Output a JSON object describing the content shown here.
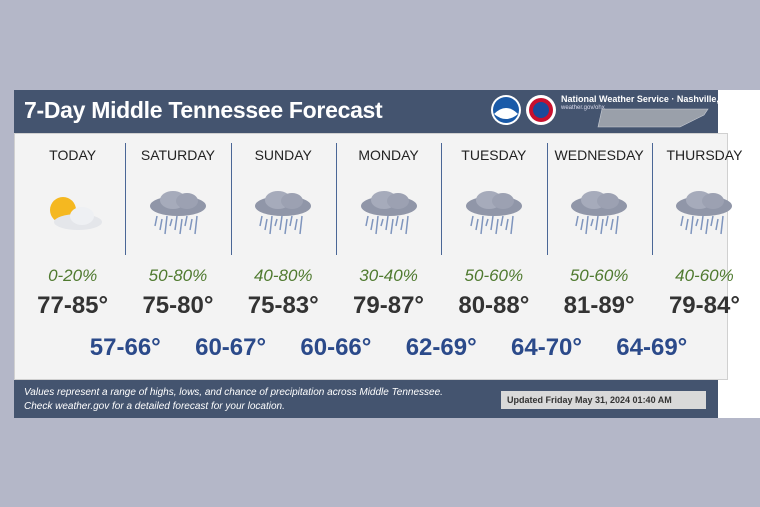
{
  "header": {
    "title": "7-Day Middle Tennessee Forecast",
    "agency": "National Weather Service · Nashville, TN",
    "site": "weather.gov/ohx"
  },
  "days": [
    {
      "name": "TODAY",
      "precip": "0-20%",
      "temps": "77-85°"
    },
    {
      "name": "SATURDAY",
      "precip": "50-80%",
      "temps": "75-80°"
    },
    {
      "name": "SUNDAY",
      "precip": "40-80%",
      "temps": "75-83°"
    },
    {
      "name": "MONDAY",
      "precip": "30-40%",
      "temps": "79-87°"
    },
    {
      "name": "TUESDAY",
      "precip": "50-60%",
      "temps": "80-88°"
    },
    {
      "name": "WEDNESDAY",
      "precip": "50-60%",
      "temps": "81-89°"
    },
    {
      "name": "THURSDAY",
      "precip": "40-60%",
      "temps": "79-84°"
    }
  ],
  "lows": [
    "57-66°",
    "60-67°",
    "60-66°",
    "62-69°",
    "64-70°",
    "64-69°"
  ],
  "footer": {
    "note_1": "Values represent a range of highs, lows, and chance of precipitation across Middle Tennessee.",
    "note_2": "Check weather.gov for a detailed forecast for your location.",
    "updated": "Updated Friday May 31, 2024 01:40 AM"
  }
}
